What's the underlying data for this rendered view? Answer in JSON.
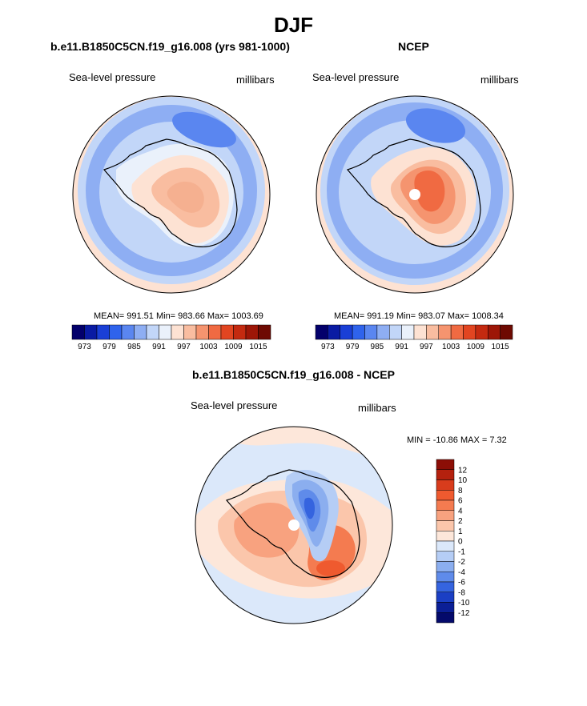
{
  "main_title": "DJF",
  "panel_left": {
    "title": "b.e11.B1850C5CN.f19_g16.008 (yrs 981-1000)",
    "field": "Sea-level pressure",
    "units": "millibars",
    "stats": "MEAN= 991.51 Min= 983.66  Max= 1003.69"
  },
  "panel_right": {
    "title": "NCEP",
    "field": "Sea-level pressure",
    "units": "millibars",
    "stats": "MEAN= 991.19 Min= 983.07  Max= 1008.34"
  },
  "panel_diff": {
    "title": "b.e11.B1850C5CN.f19_g16.008 - NCEP",
    "field": "Sea-level pressure",
    "units": "millibars",
    "stats": "MIN = -10.86 MAX =   7.32"
  },
  "slp_colorbar": {
    "labels": [
      "973",
      "979",
      "985",
      "991",
      "997",
      "1003",
      "1009",
      "1015"
    ],
    "colors": [
      "#03006b",
      "#0a1ba3",
      "#1a3fd6",
      "#2f63ec",
      "#5a86f0",
      "#8eaef3",
      "#c2d6f8",
      "#eaf1fb",
      "#fde2d3",
      "#f9bda0",
      "#f5946f",
      "#f06a42",
      "#e24521",
      "#c42a10",
      "#9d1607",
      "#6e0a02"
    ]
  },
  "diff_colorbar": {
    "labels": [
      "12",
      "10",
      "8",
      "6",
      "4",
      "2",
      "1",
      "0",
      "-1",
      "-2",
      "-4",
      "-6",
      "-8",
      "-10",
      "-12"
    ],
    "colors": [
      "#8c0e06",
      "#b4210e",
      "#d83c1c",
      "#ef5a2f",
      "#f47b50",
      "#f8a27f",
      "#fbc6ab",
      "#fde7da",
      "#dbe8fa",
      "#b5cdf5",
      "#8baeef",
      "#5f8bea",
      "#3564df",
      "#1b3fc4",
      "#0b1f96",
      "#040a6b"
    ]
  }
}
